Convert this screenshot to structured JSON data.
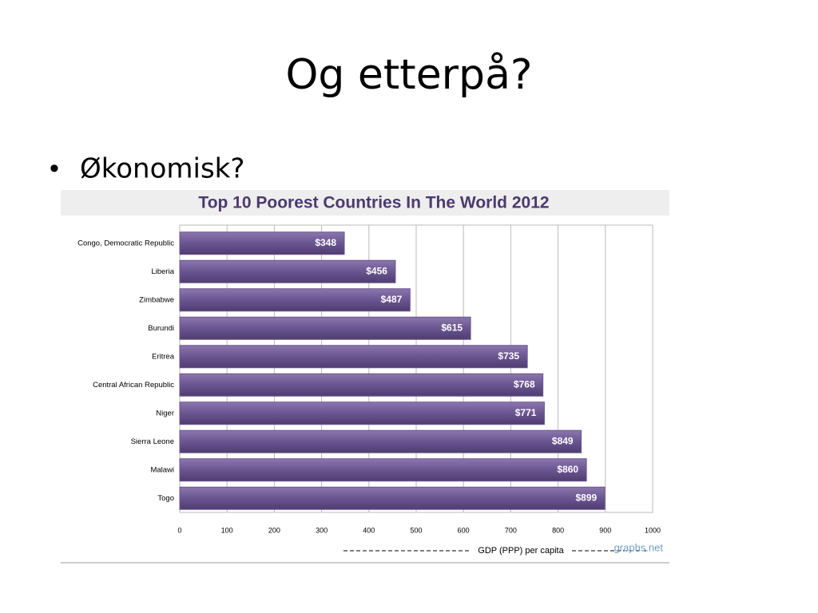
{
  "slide": {
    "title": "Og etterpå?",
    "bullets": [
      "Økonomisk?"
    ]
  },
  "chart_data": {
    "type": "bar",
    "orientation": "horizontal",
    "title": "Top 10 Poorest Countries In The World 2012",
    "categories": [
      "Congo, Democratic Republic",
      "Liberia",
      "Zimbabwe",
      "Burundi",
      "Eritrea",
      "Central African Republic",
      "Niger",
      "Sierra Leone",
      "Malawi",
      "Togo"
    ],
    "values": [
      348,
      456,
      487,
      615,
      735,
      768,
      771,
      849,
      860,
      899
    ],
    "value_labels": [
      "$348",
      "$456",
      "$487",
      "$615",
      "$735",
      "$768",
      "$771",
      "$849",
      "$860",
      "$899"
    ],
    "color": "#6b5591",
    "xlim": [
      0,
      1000
    ],
    "xticks": [
      0,
      100,
      200,
      300,
      400,
      500,
      600,
      700,
      800,
      900,
      1000
    ],
    "xlabel": "GDP (PPP) per capita",
    "grid": true,
    "source": "graphs.net"
  }
}
